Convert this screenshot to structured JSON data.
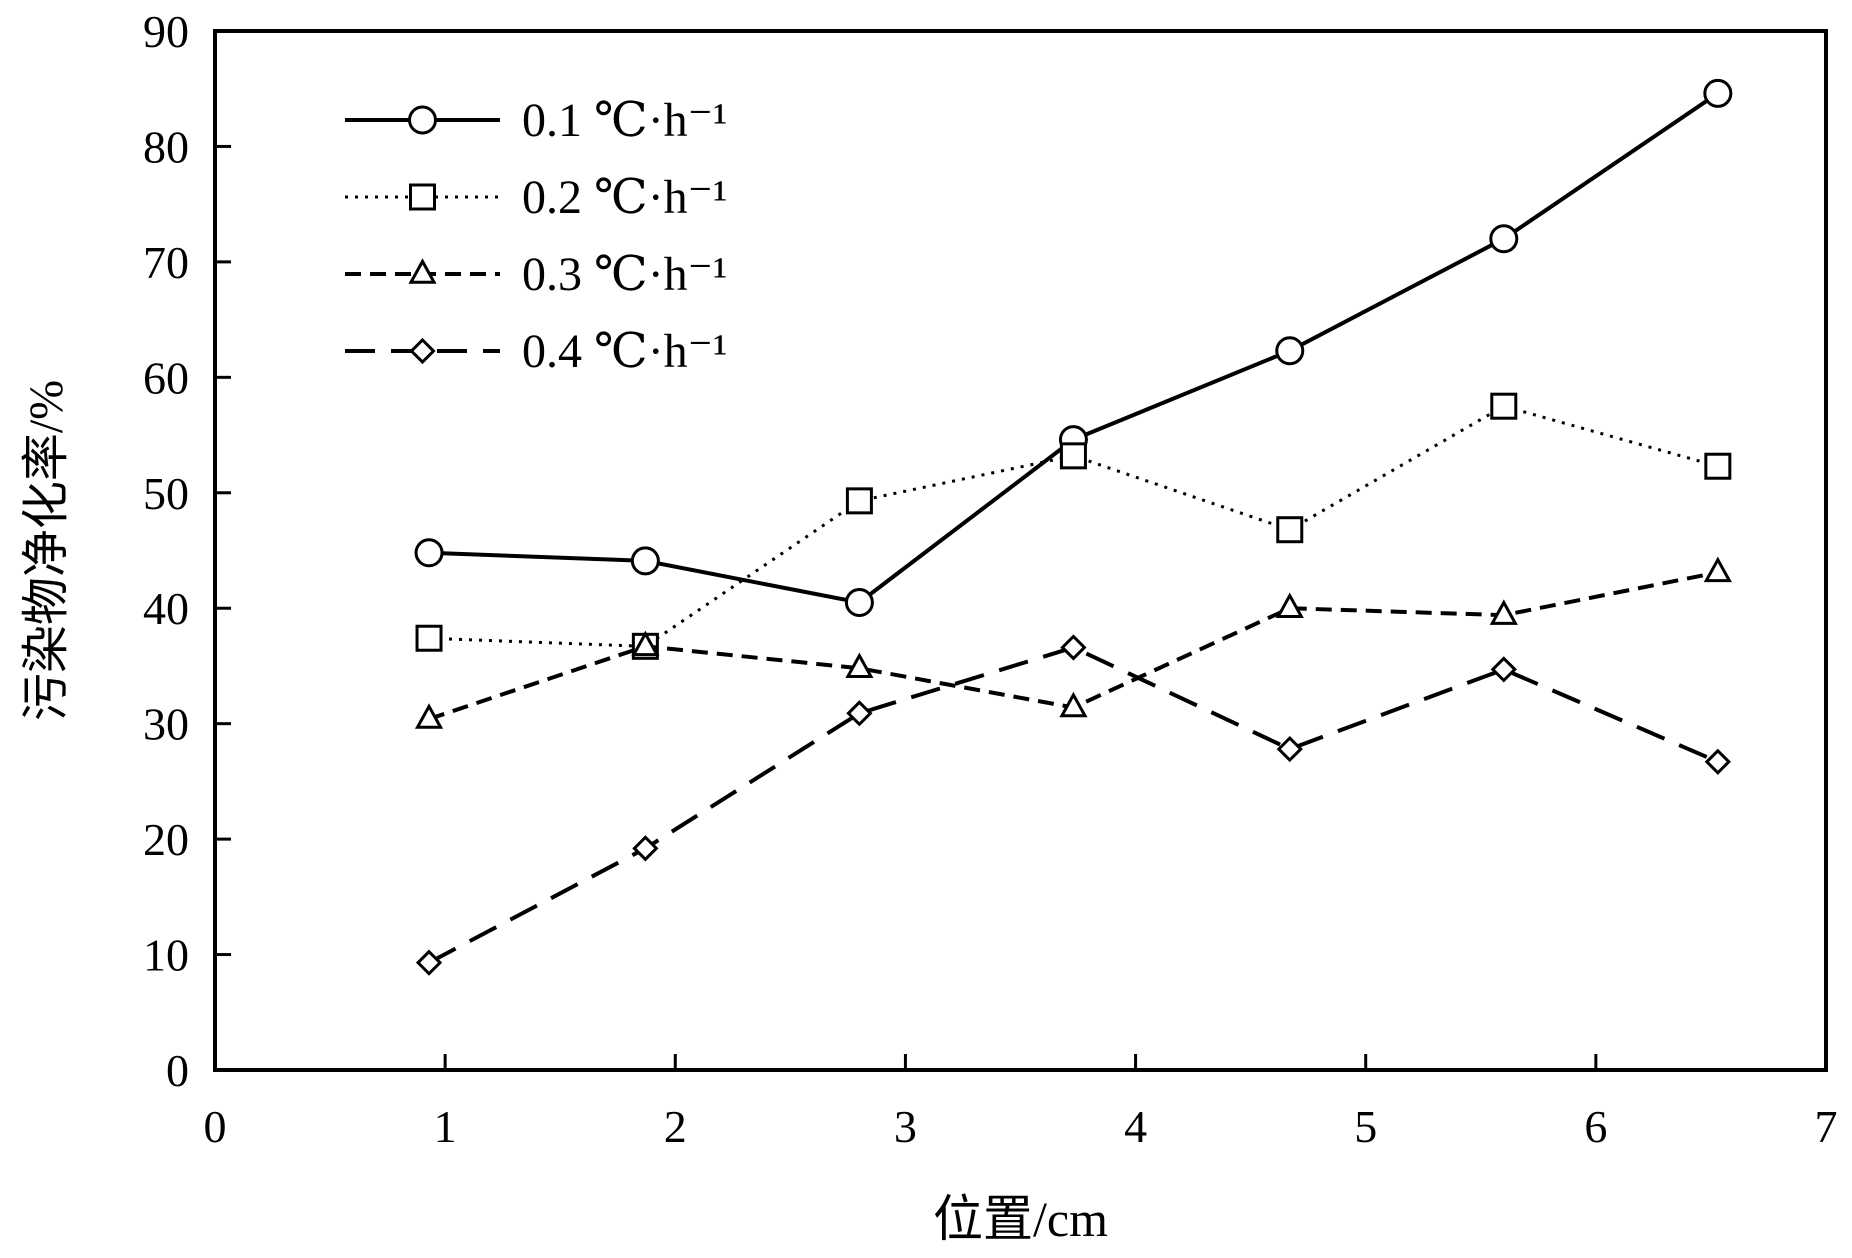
{
  "chart_data": {
    "type": "line",
    "title": "",
    "xlabel": "位置/cm",
    "ylabel": "污染物净化率/%",
    "xlim": [
      0,
      7
    ],
    "ylim": [
      0,
      90
    ],
    "x_ticks": [
      0,
      1,
      2,
      3,
      4,
      5,
      6,
      7
    ],
    "y_ticks": [
      0,
      10,
      20,
      30,
      40,
      50,
      60,
      70,
      80,
      90
    ],
    "x_tick_labels": [
      "0",
      "1",
      "2",
      "3",
      "4",
      "5",
      "6",
      "7"
    ],
    "y_tick_labels": [
      "0",
      "10",
      "20",
      "30",
      "40",
      "50",
      "60",
      "70",
      "80",
      "90"
    ],
    "grid": false,
    "legend_position": "top-left",
    "x": [
      0.93,
      1.87,
      2.8,
      3.73,
      4.67,
      5.6,
      6.53
    ],
    "series": [
      {
        "name": "0.1 ℃·h⁻¹",
        "marker": "circle",
        "line_style": "solid",
        "values": [
          44.8,
          44.1,
          40.5,
          54.6,
          62.3,
          72.0,
          84.6
        ]
      },
      {
        "name": "0.2 ℃·h⁻¹",
        "marker": "square",
        "line_style": "dotted",
        "values": [
          37.4,
          36.7,
          49.3,
          53.2,
          46.8,
          57.5,
          52.3
        ]
      },
      {
        "name": "0.3 ℃·h⁻¹",
        "marker": "triangle",
        "line_style": "dashed",
        "values": [
          30.4,
          36.7,
          34.8,
          31.4,
          40.0,
          39.4,
          43.1
        ]
      },
      {
        "name": "0.4 ℃·h⁻¹",
        "marker": "diamond",
        "line_style": "long-dashed",
        "values": [
          9.3,
          19.2,
          30.9,
          36.6,
          27.8,
          34.7,
          26.7
        ]
      }
    ]
  }
}
